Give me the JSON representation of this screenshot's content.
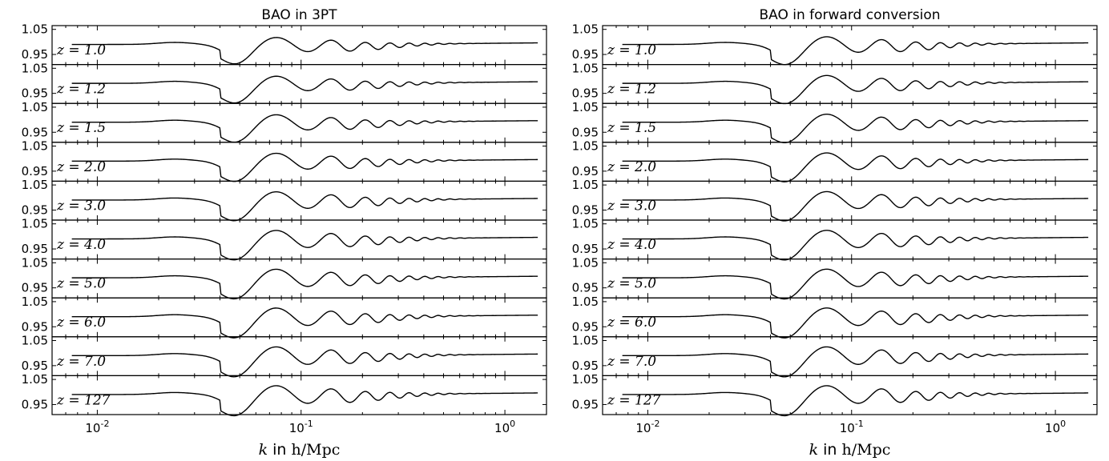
{
  "chart_data": [
    {
      "type": "line",
      "title": "BAO in 3PT",
      "xlabel_prefix": "k",
      "xlabel_mid": " in ",
      "xlabel_unit": "h/Mpc",
      "x_scale": "log",
      "xlim": [
        0.006,
        1.6
      ],
      "ylim": [
        0.91,
        1.065
      ],
      "yticks": [
        1.05,
        0.95
      ],
      "ytick_labels": [
        "1.05",
        "0.95"
      ],
      "xtick_labels": [
        {
          "value": 0.01,
          "base": "10",
          "exp": "-2"
        },
        {
          "value": 0.1,
          "base": "10",
          "exp": "-1"
        },
        {
          "value": 1,
          "base": "10",
          "exp": "0"
        }
      ],
      "panels": [
        {
          "label": "z = 1.0",
          "z": "1.0",
          "amp": 0.8
        },
        {
          "label": "z = 1.2",
          "z": "1.2",
          "amp": 0.82
        },
        {
          "label": "z = 1.5",
          "z": "1.5",
          "amp": 0.86
        },
        {
          "label": "z = 2.0",
          "z": "2.0",
          "amp": 0.9
        },
        {
          "label": "z = 3.0",
          "z": "3.0",
          "amp": 0.94
        },
        {
          "label": "z = 4.0",
          "z": "4.0",
          "amp": 0.97
        },
        {
          "label": "z = 5.0",
          "z": "5.0",
          "amp": 0.98
        },
        {
          "label": "z = 6.0",
          "z": "6.0",
          "amp": 0.99
        },
        {
          "label": "z = 7.0",
          "z": "7.0",
          "amp": 0.995
        },
        {
          "label": "z = 127",
          "z": "127",
          "amp": 1.0
        }
      ]
    },
    {
      "type": "line",
      "title": "BAO in forward conversion",
      "xlabel_prefix": "k",
      "xlabel_mid": " in ",
      "xlabel_unit": "h/Mpc",
      "x_scale": "log",
      "xlim": [
        0.006,
        1.6
      ],
      "ylim": [
        0.91,
        1.065
      ],
      "yticks": [
        1.05,
        0.95
      ],
      "ytick_labels": [
        "1.05",
        "0.95"
      ],
      "xtick_labels": [
        {
          "value": 0.01,
          "base": "10",
          "exp": "-2"
        },
        {
          "value": 0.1,
          "base": "10",
          "exp": "-1"
        },
        {
          "value": 1,
          "base": "10",
          "exp": "0"
        }
      ],
      "panels": [
        {
          "label": "z = 1.0",
          "z": "1.0",
          "amp": 0.88
        },
        {
          "label": "z = 1.2",
          "z": "1.2",
          "amp": 0.9
        },
        {
          "label": "z = 1.5",
          "z": "1.5",
          "amp": 0.92
        },
        {
          "label": "z = 2.0",
          "z": "2.0",
          "amp": 0.94
        },
        {
          "label": "z = 3.0",
          "z": "3.0",
          "amp": 0.96
        },
        {
          "label": "z = 4.0",
          "z": "4.0",
          "amp": 0.98
        },
        {
          "label": "z = 5.0",
          "z": "5.0",
          "amp": 0.99
        },
        {
          "label": "z = 6.0",
          "z": "6.0",
          "amp": 0.995
        },
        {
          "label": "z = 7.0",
          "z": "7.0",
          "amp": 0.998
        },
        {
          "label": "z = 127",
          "z": "127",
          "amp": 1.0
        }
      ]
    }
  ]
}
